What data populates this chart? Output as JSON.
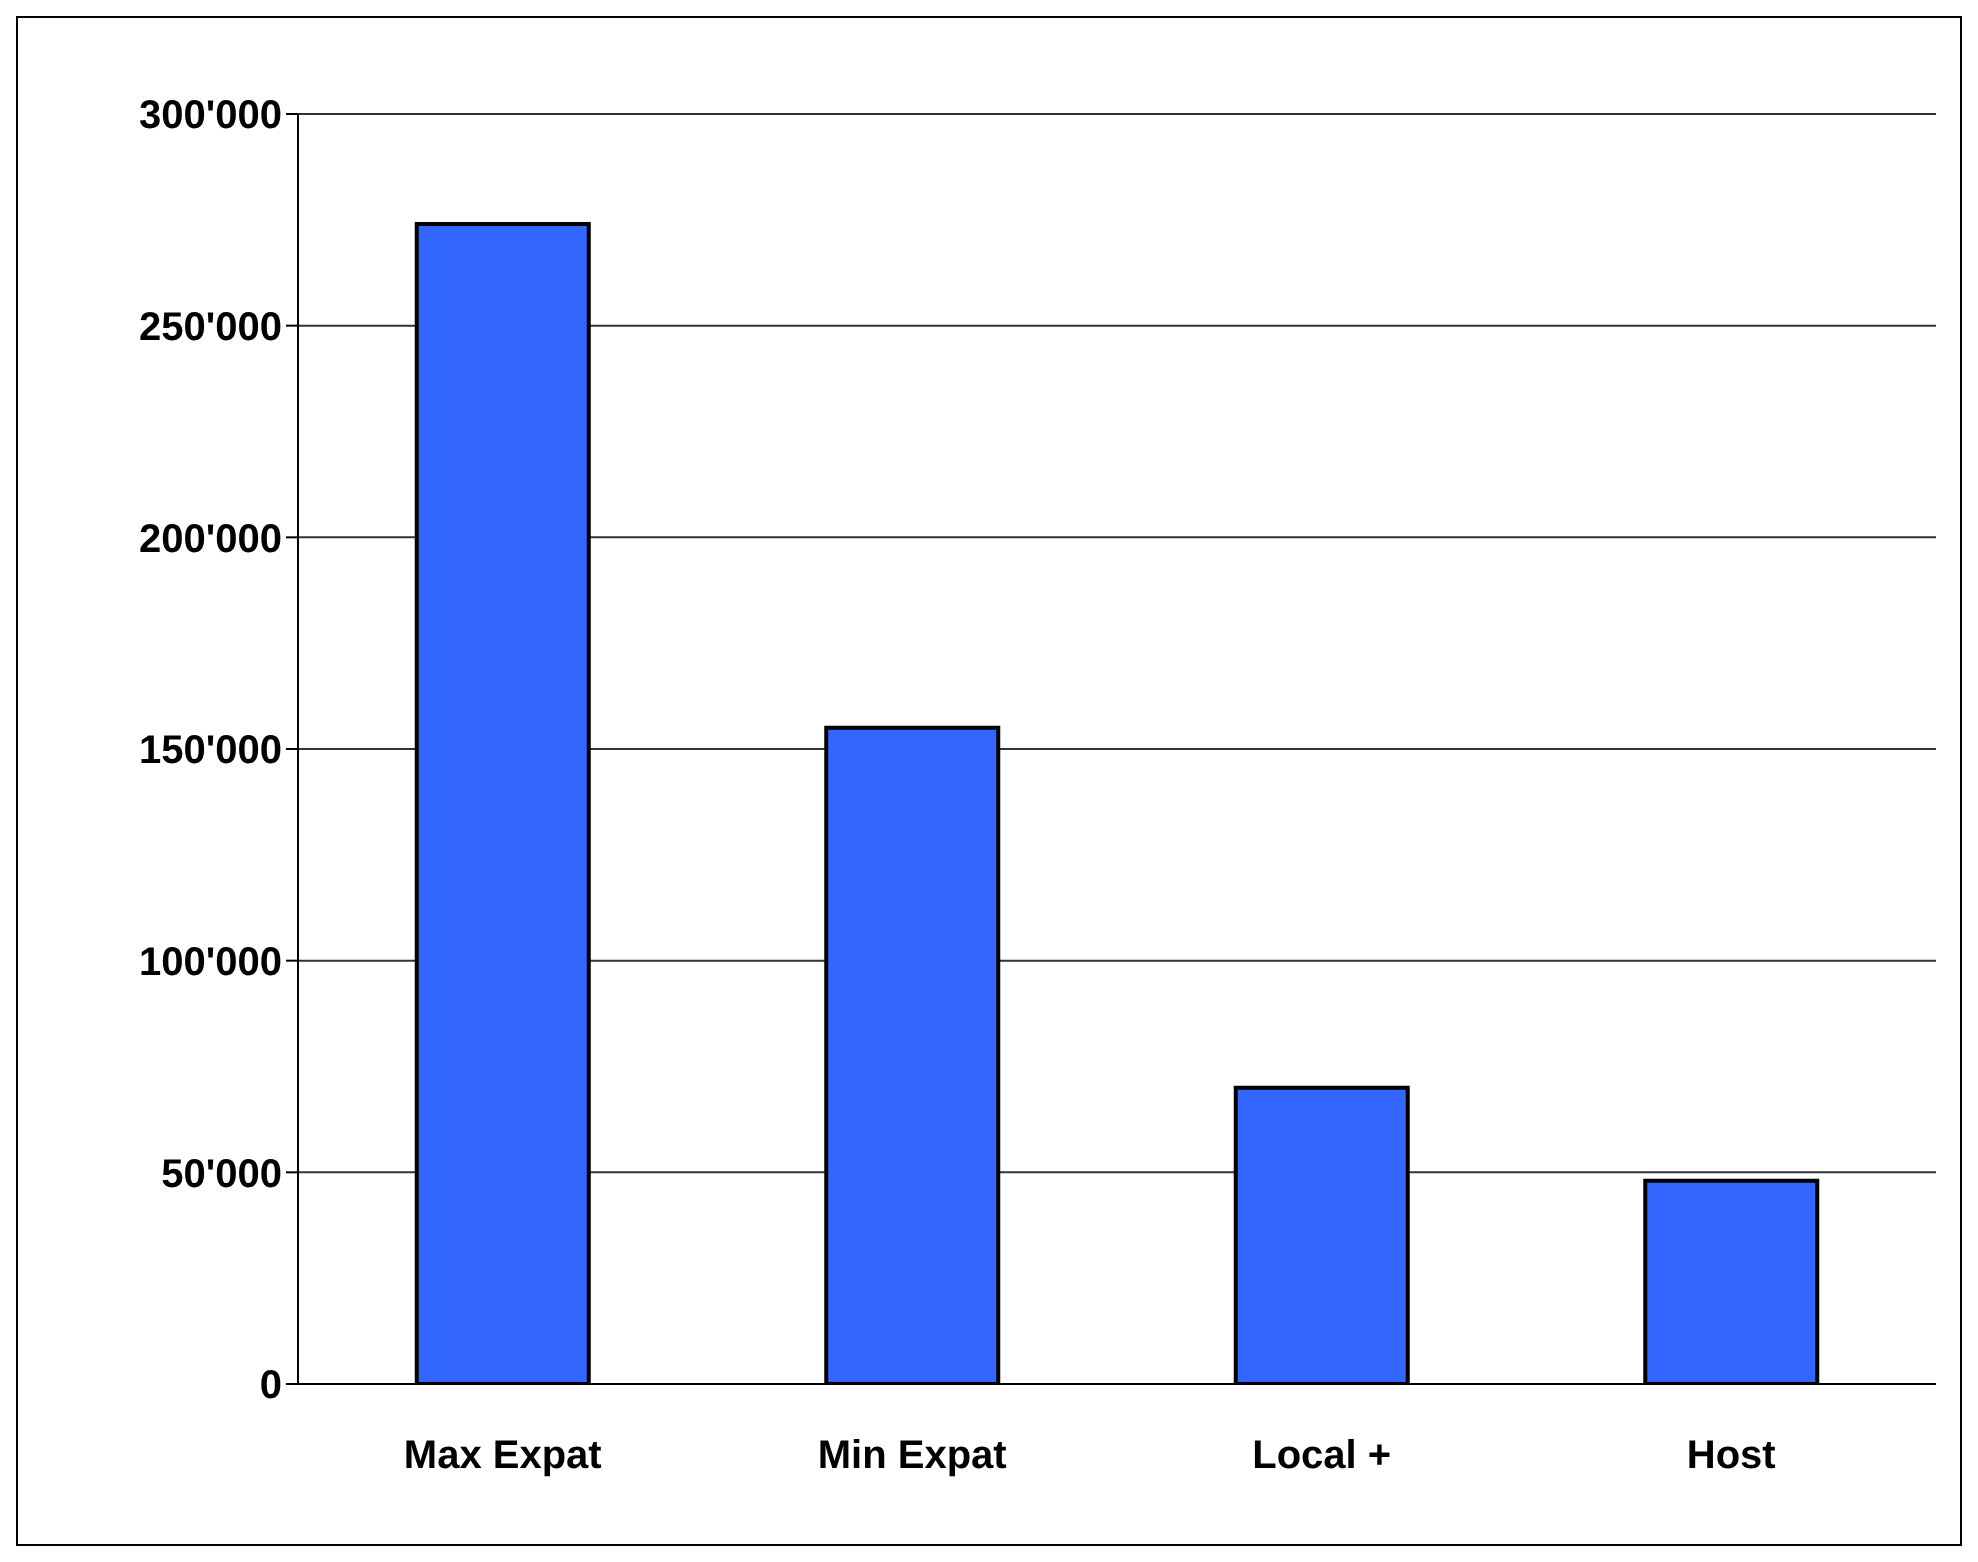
{
  "chart_data": {
    "type": "bar",
    "categories": [
      "Max Expat",
      "Min Expat",
      "Local +",
      "Host"
    ],
    "values": [
      274000,
      155000,
      70000,
      48000
    ],
    "color": "#3366ff",
    "ylim": [
      0,
      300000
    ],
    "yticks": [
      0,
      {
        "value": 50000,
        "label": "50'000"
      },
      {
        "value": 100000,
        "label": "100'000"
      },
      {
        "value": 150000,
        "label": "150'000"
      },
      {
        "value": 200000,
        "label": "200'000"
      },
      {
        "value": 250000,
        "label": "250'000"
      },
      {
        "value": 300000,
        "label": "300'000"
      }
    ],
    "grid": "y",
    "legend": false
  }
}
